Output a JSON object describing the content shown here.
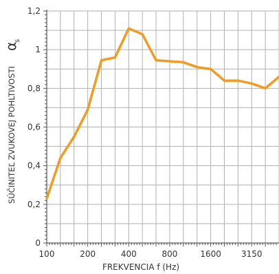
{
  "chart_data": {
    "type": "line",
    "xlabel": "FREKVENCIA f (Hz)",
    "ylabel": "SÚČINITEĽ ZVUKOVEJ POHLTIVOSTI",
    "ylabel_symbol": "α",
    "ylabel_subscript": "s",
    "x_tick_labels": [
      "100",
      "200",
      "400",
      "800",
      "1600",
      "3150"
    ],
    "y_tick_labels": [
      "0",
      "0,2",
      "0,4",
      "0,6",
      "0,8",
      "1",
      "1,2"
    ],
    "ylim": [
      0,
      1.2
    ],
    "grid": true,
    "x": [
      "100",
      "125",
      "160",
      "200",
      "250",
      "315",
      "400",
      "500",
      "630",
      "800",
      "1000",
      "1250",
      "1600",
      "2000",
      "2500",
      "3150",
      "4000",
      "5000"
    ],
    "series": [
      {
        "values": [
          0.23,
          0.44,
          0.55,
          0.69,
          0.945,
          0.96,
          1.11,
          1.08,
          0.945,
          0.94,
          0.935,
          0.91,
          0.9,
          0.84,
          0.84,
          0.825,
          0.8,
          0.86
        ]
      }
    ],
    "colors": {
      "line": "#f39a22",
      "grid": "#b0b0b0",
      "axis": "#555555"
    }
  }
}
